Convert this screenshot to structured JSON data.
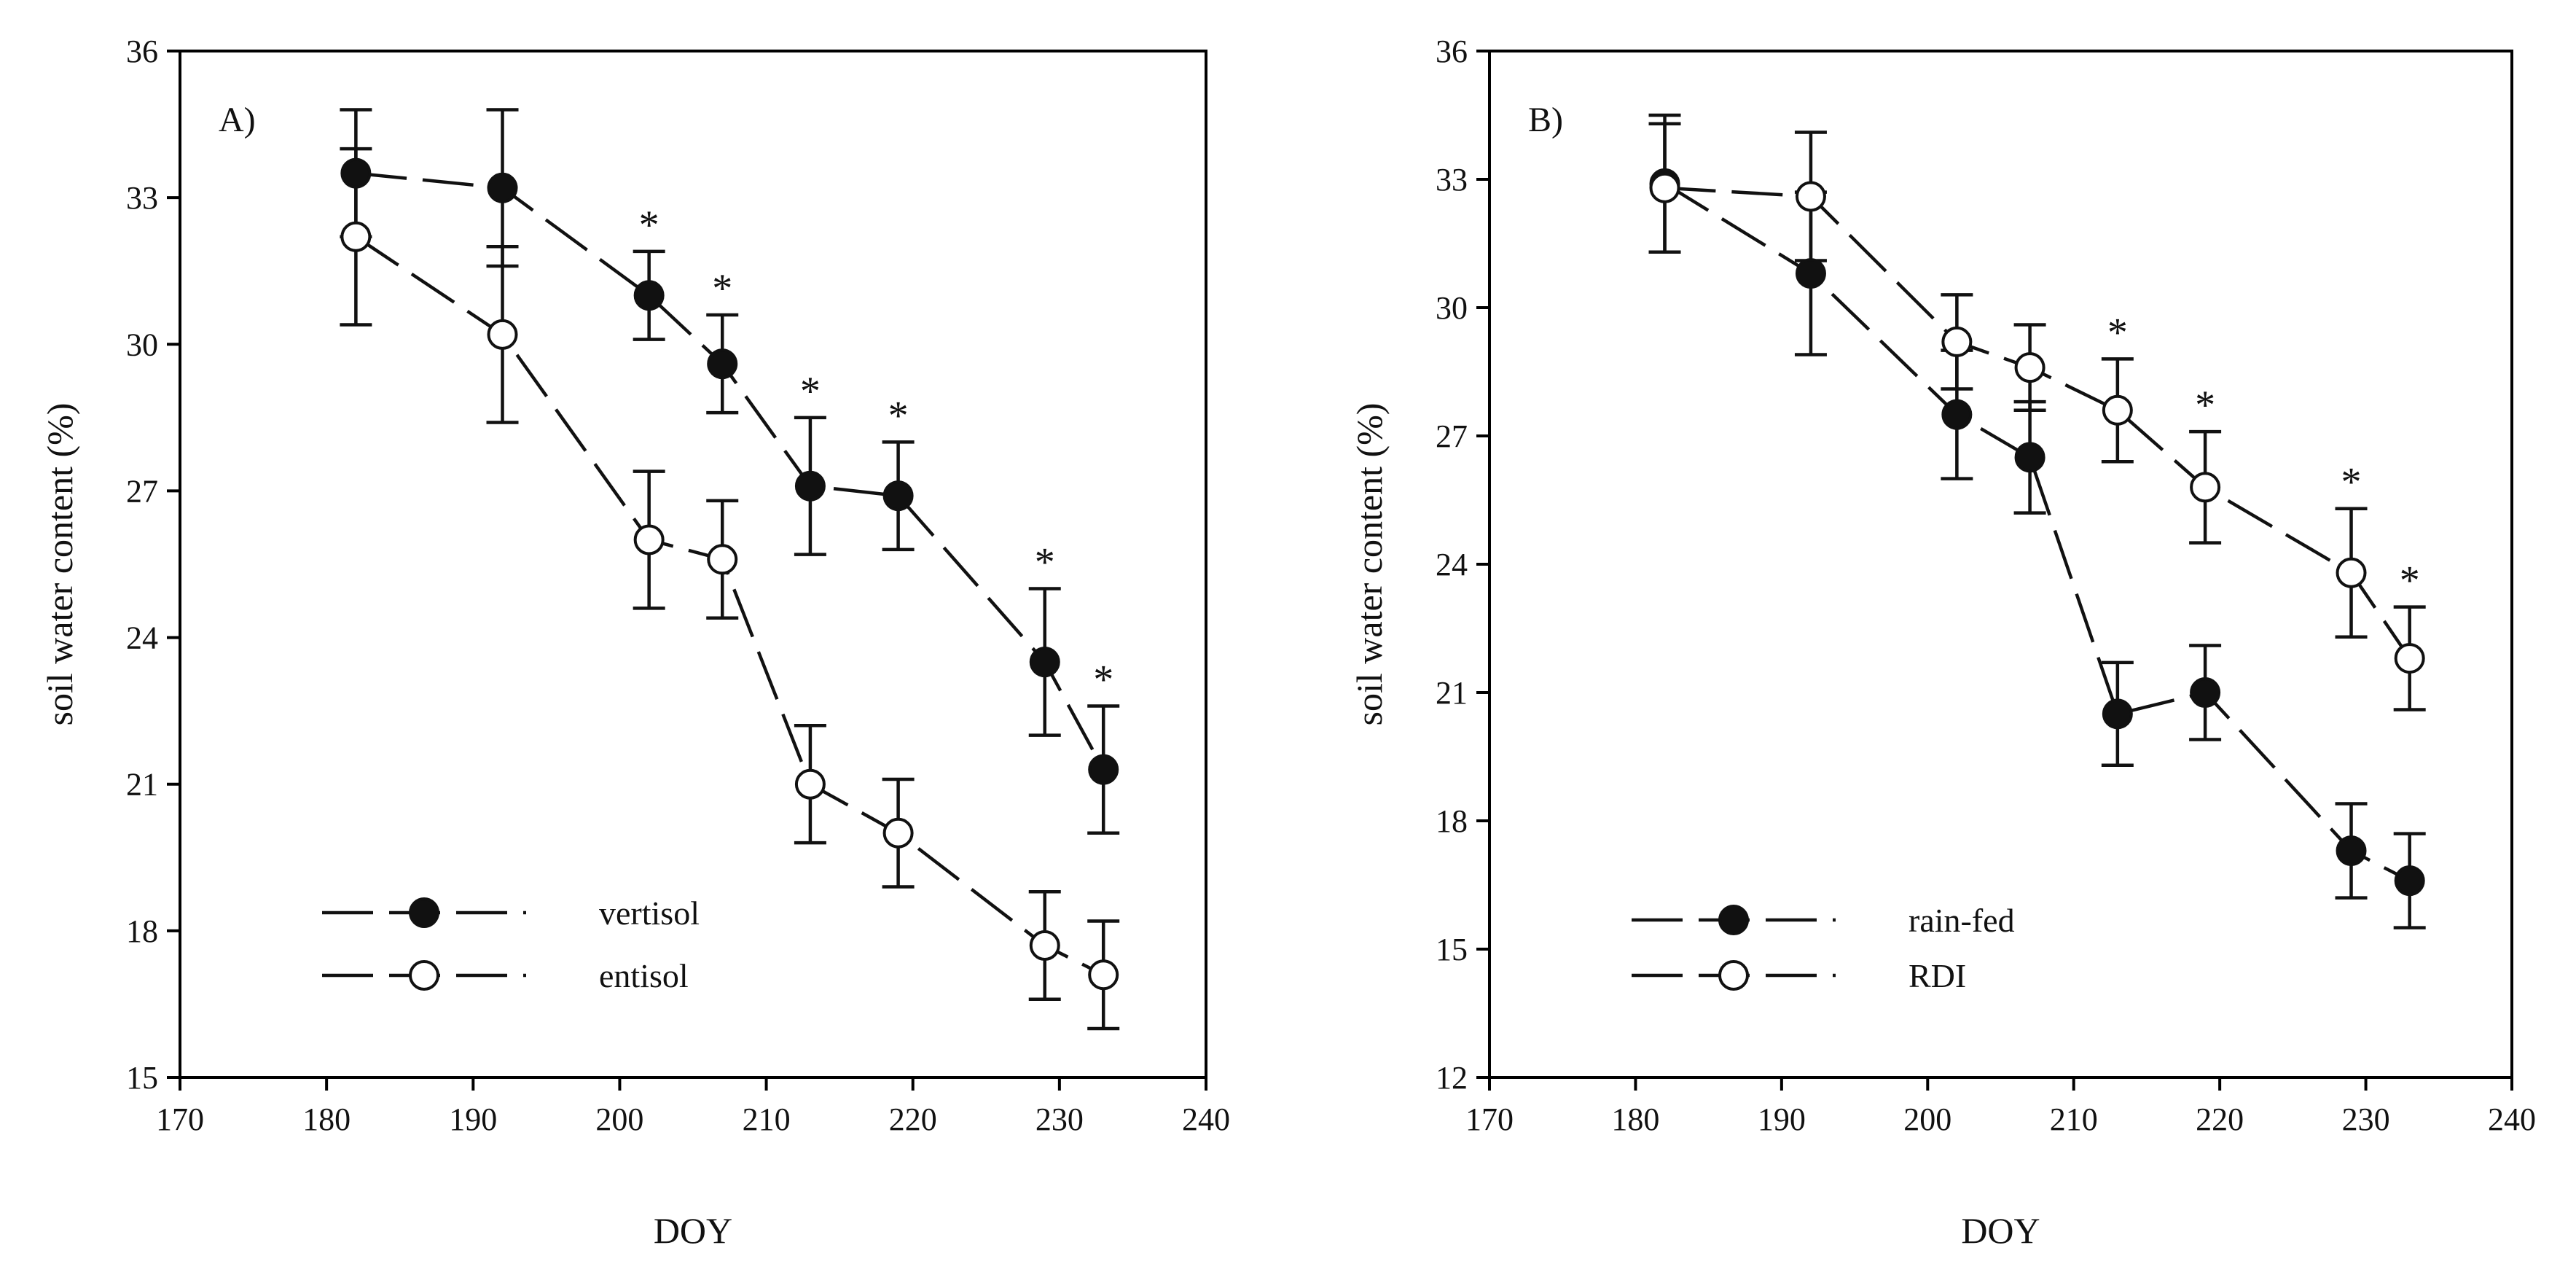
{
  "chart_data": [
    {
      "type": "line",
      "panel_label": "A)",
      "xlabel": "DOY",
      "ylabel": "soil water content (%)",
      "xlim": [
        170,
        240
      ],
      "ylim": [
        15,
        36
      ],
      "xticks": [
        170,
        180,
        190,
        200,
        210,
        220,
        230,
        240
      ],
      "yticks": [
        15,
        18,
        21,
        24,
        27,
        30,
        33,
        36
      ],
      "x": [
        182,
        192,
        202,
        207,
        213,
        219,
        229,
        233
      ],
      "series": [
        {
          "name": "vertisol",
          "marker": "filled",
          "values": [
            33.5,
            33.2,
            31.0,
            29.6,
            27.1,
            26.9,
            23.5,
            21.3
          ],
          "errors": [
            1.3,
            1.6,
            0.9,
            1.0,
            1.4,
            1.1,
            1.5,
            1.3
          ]
        },
        {
          "name": "entisol",
          "marker": "open",
          "values": [
            32.2,
            30.2,
            26.0,
            25.6,
            21.0,
            20.0,
            17.7,
            17.1
          ],
          "errors": [
            1.8,
            1.8,
            1.4,
            1.2,
            1.2,
            1.1,
            1.1,
            1.1
          ]
        }
      ],
      "significant_x": [
        202,
        207,
        213,
        219,
        229,
        233
      ],
      "significant_series": "vertisol",
      "significance_symbol": "*",
      "legend_position": "bottom-left"
    },
    {
      "type": "line",
      "panel_label": "B)",
      "xlabel": "DOY",
      "ylabel": "soil water content (%)",
      "xlim": [
        170,
        240
      ],
      "ylim": [
        12,
        36
      ],
      "xticks": [
        170,
        180,
        190,
        200,
        210,
        220,
        230,
        240
      ],
      "yticks": [
        12,
        15,
        18,
        21,
        24,
        27,
        30,
        33,
        36
      ],
      "x": [
        182,
        192,
        202,
        207,
        213,
        219,
        229,
        233
      ],
      "series": [
        {
          "name": "rain-fed",
          "marker": "filled",
          "values": [
            32.9,
            30.8,
            27.5,
            26.5,
            20.5,
            21.0,
            17.3,
            16.6
          ],
          "errors": [
            1.6,
            1.9,
            1.5,
            1.3,
            1.2,
            1.1,
            1.1,
            1.1
          ]
        },
        {
          "name": "RDI",
          "marker": "open",
          "values": [
            32.8,
            32.6,
            29.2,
            28.6,
            27.6,
            25.8,
            23.8,
            21.8
          ],
          "errors": [
            1.5,
            1.5,
            1.1,
            1.0,
            1.2,
            1.3,
            1.5,
            1.2
          ]
        }
      ],
      "significant_x": [
        213,
        219,
        229,
        233
      ],
      "significant_series": "RDI",
      "significance_symbol": "*",
      "legend_position": "bottom-left"
    }
  ]
}
